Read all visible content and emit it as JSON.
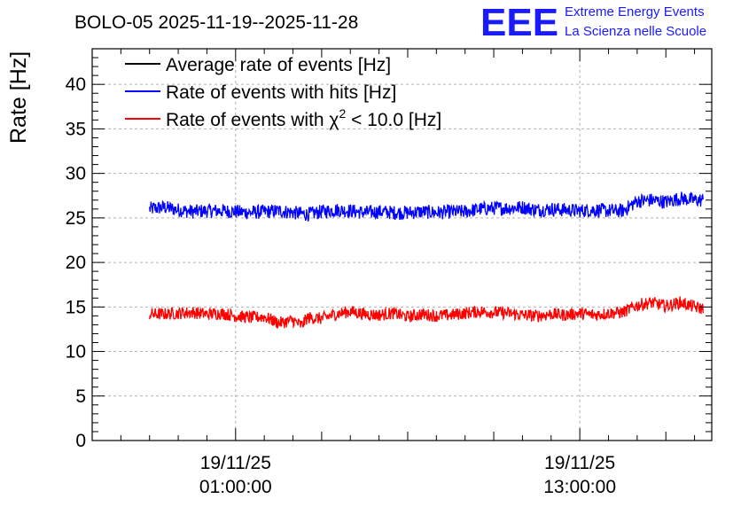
{
  "chart_data": {
    "type": "line",
    "title": "BOLO-05 2025-11-19--2025-11-28",
    "ylabel": "Rate [Hz]",
    "xlabel": "",
    "ylim": [
      0,
      44
    ],
    "xlim_hours": [
      -4.0,
      17.6
    ],
    "y_ticks": [
      "0",
      "5",
      "10",
      "15",
      "20",
      "25",
      "30",
      "35",
      "40"
    ],
    "x_ticks": [
      {
        "hour": 1,
        "date": "19/11/25",
        "time": "01:00:00"
      },
      {
        "hour": 13,
        "date": "19/11/25",
        "time": "13:00:00"
      }
    ],
    "grid": true,
    "legend_position": "top-left",
    "series": [
      {
        "name": "Average rate of events [Hz]",
        "color": "#000000",
        "points": []
      },
      {
        "name": "Rate of events with hits [Hz]",
        "color": "#0000ff",
        "points": [
          [
            -2.0,
            26.0
          ],
          [
            -1.5,
            26.2
          ],
          [
            -1.0,
            25.9
          ],
          [
            -0.5,
            25.7
          ],
          [
            0.0,
            25.8
          ],
          [
            0.5,
            25.8
          ],
          [
            1.0,
            25.7
          ],
          [
            1.5,
            25.6
          ],
          [
            2.0,
            25.7
          ],
          [
            2.5,
            25.8
          ],
          [
            3.0,
            25.6
          ],
          [
            3.5,
            25.4
          ],
          [
            4.0,
            25.7
          ],
          [
            4.5,
            25.9
          ],
          [
            5.0,
            25.8
          ],
          [
            5.5,
            25.6
          ],
          [
            6.0,
            25.7
          ],
          [
            6.5,
            25.6
          ],
          [
            7.0,
            25.6
          ],
          [
            7.5,
            25.7
          ],
          [
            8.0,
            25.6
          ],
          [
            8.5,
            25.7
          ],
          [
            9.0,
            25.7
          ],
          [
            9.5,
            26.0
          ],
          [
            10.0,
            26.1
          ],
          [
            10.5,
            26.1
          ],
          [
            11.0,
            26.2
          ],
          [
            11.5,
            25.9
          ],
          [
            12.0,
            26.0
          ],
          [
            12.5,
            25.9
          ],
          [
            13.0,
            25.8
          ],
          [
            13.5,
            25.9
          ],
          [
            14.0,
            25.8
          ],
          [
            14.5,
            25.8
          ],
          [
            15.0,
            26.9
          ],
          [
            15.5,
            27.0
          ],
          [
            16.0,
            26.8
          ],
          [
            16.5,
            27.2
          ],
          [
            17.0,
            27.0
          ],
          [
            17.3,
            27.0
          ]
        ],
        "noise": 0.8
      },
      {
        "name": "Rate of events with χ² < 10.0 [Hz]",
        "color": "#ff0000",
        "points": [
          [
            -2.0,
            14.2
          ],
          [
            -1.5,
            14.2
          ],
          [
            -1.0,
            14.3
          ],
          [
            -0.5,
            14.4
          ],
          [
            0.0,
            14.2
          ],
          [
            0.5,
            14.3
          ],
          [
            1.0,
            14.0
          ],
          [
            1.5,
            13.8
          ],
          [
            2.0,
            13.9
          ],
          [
            2.5,
            13.2
          ],
          [
            3.0,
            13.5
          ],
          [
            3.3,
            12.9
          ],
          [
            3.5,
            13.8
          ],
          [
            4.0,
            13.7
          ],
          [
            4.5,
            14.2
          ],
          [
            5.0,
            14.5
          ],
          [
            5.5,
            14.2
          ],
          [
            6.0,
            14.1
          ],
          [
            6.5,
            14.3
          ],
          [
            7.0,
            13.9
          ],
          [
            7.5,
            14.2
          ],
          [
            8.0,
            14.0
          ],
          [
            8.5,
            14.1
          ],
          [
            9.0,
            14.3
          ],
          [
            9.5,
            14.5
          ],
          [
            10.0,
            14.4
          ],
          [
            10.5,
            14.3
          ],
          [
            11.0,
            14.1
          ],
          [
            11.5,
            14.0
          ],
          [
            12.0,
            14.2
          ],
          [
            12.5,
            14.1
          ],
          [
            13.0,
            14.3
          ],
          [
            13.5,
            14.1
          ],
          [
            14.0,
            14.3
          ],
          [
            14.5,
            14.4
          ],
          [
            15.0,
            15.2
          ],
          [
            15.5,
            15.5
          ],
          [
            16.0,
            15.1
          ],
          [
            16.5,
            15.5
          ],
          [
            17.0,
            15.0
          ],
          [
            17.3,
            14.8
          ]
        ],
        "noise": 0.7
      }
    ]
  },
  "legend": {
    "average_label": "Average rate of events [Hz]",
    "hits_label": "Rate of events with hits [Hz]",
    "chi_prefix": "Rate of events with χ",
    "chi_sup": "2",
    "chi_suffix": " < 10.0 [Hz]"
  },
  "logo": {
    "mark": "EEE",
    "line1": "Extreme Energy Events",
    "line2": "La Scienza nelle Scuole"
  },
  "colors": {
    "logo": "#1a1aff",
    "hits": "#0000ff",
    "chi": "#ff0000",
    "average": "#000000"
  }
}
